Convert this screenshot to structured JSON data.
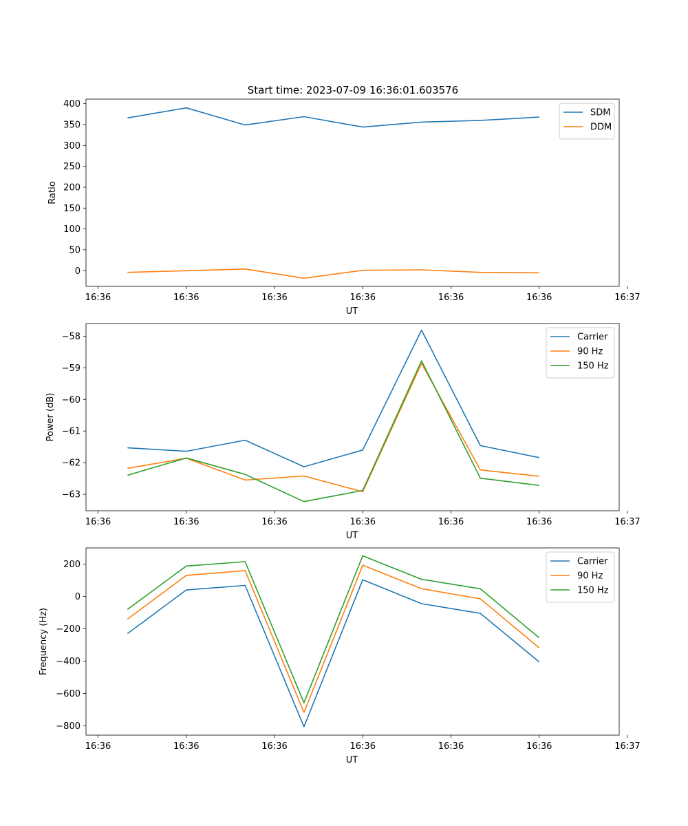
{
  "figure_title": "Start time: 2023-07-09 16:36:01.603576",
  "colors": {
    "blue": "#1f77b4",
    "orange": "#ff7f0e",
    "green": "#2ca02c"
  },
  "chart_data": [
    {
      "type": "line",
      "title": "Start time: 2023-07-09 16:36:01.603576",
      "xlabel": "UT",
      "ylabel": "Ratio",
      "x": [
        1,
        2,
        3,
        4,
        5,
        6,
        7,
        8
      ],
      "xlim": [
        0.295,
        9.36
      ],
      "xticks": [
        0.5,
        2.0,
        3.5,
        5.0,
        6.5,
        8.0,
        9.5
      ],
      "xtick_labels": [
        "16:36",
        "16:36",
        "16:36",
        "16:36",
        "16:36",
        "16:36",
        "16:37"
      ],
      "ylim": [
        -37.5,
        411
      ],
      "yticks": [
        0,
        50,
        100,
        150,
        200,
        250,
        300,
        350,
        400
      ],
      "ytick_labels": [
        "0",
        "50",
        "100",
        "150",
        "200",
        "250",
        "300",
        "350",
        "400"
      ],
      "legend_position": "top-right",
      "series": [
        {
          "name": "SDM",
          "color": "#1f77b4",
          "values": [
            366,
            390,
            349,
            369,
            344,
            356,
            360,
            368
          ]
        },
        {
          "name": "DDM",
          "color": "#ff7f0e",
          "values": [
            -4,
            0,
            4,
            -18,
            1,
            2,
            -4,
            -5
          ]
        }
      ]
    },
    {
      "type": "line",
      "title": "",
      "xlabel": "UT",
      "ylabel": "Power (dB)",
      "x": [
        1,
        2,
        3,
        4,
        5,
        6,
        7,
        8
      ],
      "xlim": [
        0.295,
        9.36
      ],
      "xticks": [
        0.5,
        2.0,
        3.5,
        5.0,
        6.5,
        8.0,
        9.5
      ],
      "xtick_labels": [
        "16:36",
        "16:36",
        "16:36",
        "16:36",
        "16:36",
        "16:36",
        "16:37"
      ],
      "ylim": [
        -63.52,
        -57.6
      ],
      "yticks": [
        -63,
        -62,
        -61,
        -60,
        -59,
        -58
      ],
      "ytick_labels": [
        "−63",
        "−62",
        "−61",
        "−60",
        "−59",
        "−58"
      ],
      "legend_position": "top-right",
      "series": [
        {
          "name": "Carrier",
          "color": "#1f77b4",
          "values": [
            -61.53,
            -61.64,
            -61.29,
            -62.13,
            -61.6,
            -57.81,
            -61.46,
            -61.84
          ]
        },
        {
          "name": "90 Hz",
          "color": "#ff7f0e",
          "values": [
            -62.18,
            -61.86,
            -62.55,
            -62.42,
            -62.92,
            -58.86,
            -62.23,
            -62.43
          ]
        },
        {
          "name": "150 Hz",
          "color": "#2ca02c",
          "values": [
            -62.4,
            -61.85,
            -62.37,
            -63.23,
            -62.88,
            -58.78,
            -62.49,
            -62.72
          ]
        }
      ]
    },
    {
      "type": "line",
      "title": "",
      "xlabel": "UT",
      "ylabel": "Frequency (Hz)",
      "x": [
        1,
        2,
        3,
        4,
        5,
        6,
        7,
        8
      ],
      "xlim": [
        0.295,
        9.36
      ],
      "xticks": [
        0.5,
        2.0,
        3.5,
        5.0,
        6.5,
        8.0,
        9.5
      ],
      "xtick_labels": [
        "16:36",
        "16:36",
        "16:36",
        "16:36",
        "16:36",
        "16:36",
        "16:37"
      ],
      "ylim": [
        -858,
        300
      ],
      "yticks": [
        -800,
        -600,
        -400,
        -200,
        0,
        200
      ],
      "ytick_labels": [
        "−800",
        "−600",
        "−400",
        "−200",
        "0",
        "200"
      ],
      "legend_position": "top-right",
      "series": [
        {
          "name": "Carrier",
          "color": "#1f77b4",
          "values": [
            -230,
            40,
            68,
            -806,
            103,
            -45,
            -105,
            -405
          ]
        },
        {
          "name": "90 Hz",
          "color": "#ff7f0e",
          "values": [
            -140,
            130,
            160,
            -718,
            193,
            48,
            -15,
            -318
          ]
        },
        {
          "name": "150 Hz",
          "color": "#2ca02c",
          "values": [
            -80,
            188,
            215,
            -658,
            251,
            106,
            47,
            -256
          ]
        }
      ]
    }
  ]
}
